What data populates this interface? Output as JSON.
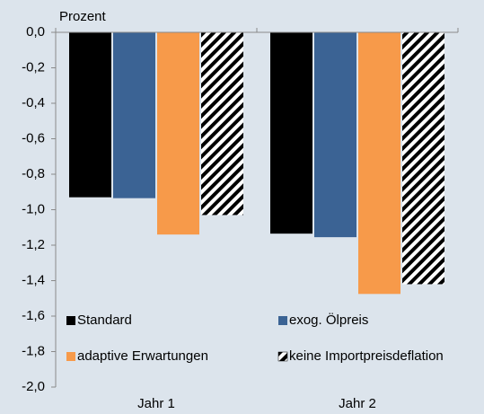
{
  "chart_data": {
    "type": "bar",
    "y_label": "Prozent",
    "categories": [
      "Jahr 1",
      "Jahr 2"
    ],
    "series": [
      {
        "name": "Standard",
        "color": "#000000",
        "values": [
          -0.93,
          -1.135
        ]
      },
      {
        "name": "exog. Ölpreis",
        "color": "#3b6394",
        "values": [
          -0.935,
          -1.155
        ]
      },
      {
        "name": "adaptive Erwartungen",
        "color": "#f79a4a",
        "values": [
          -1.14,
          -1.475
        ]
      },
      {
        "name": "keine Importpreisdeflation",
        "color": "#000000",
        "hatch": true,
        "values": [
          -1.03,
          -1.42
        ]
      }
    ],
    "ylim": [
      0,
      -2.0
    ],
    "yticks": [
      {
        "value": 0,
        "label": "0,0"
      },
      {
        "value": -0.2,
        "label": "-0,2"
      },
      {
        "value": -0.4,
        "label": "-0,4"
      },
      {
        "value": -0.6,
        "label": "-0,6"
      },
      {
        "value": -0.8,
        "label": "-0,8"
      },
      {
        "value": -1.0,
        "label": "-1,0"
      },
      {
        "value": -1.2,
        "label": "-1,2"
      },
      {
        "value": -1.4,
        "label": "-1,4"
      },
      {
        "value": -1.6,
        "label": "-1,6"
      },
      {
        "value": -1.8,
        "label": "-1,8"
      },
      {
        "value": -2.0,
        "label": "-2,0"
      }
    ],
    "legend": "lower center"
  }
}
